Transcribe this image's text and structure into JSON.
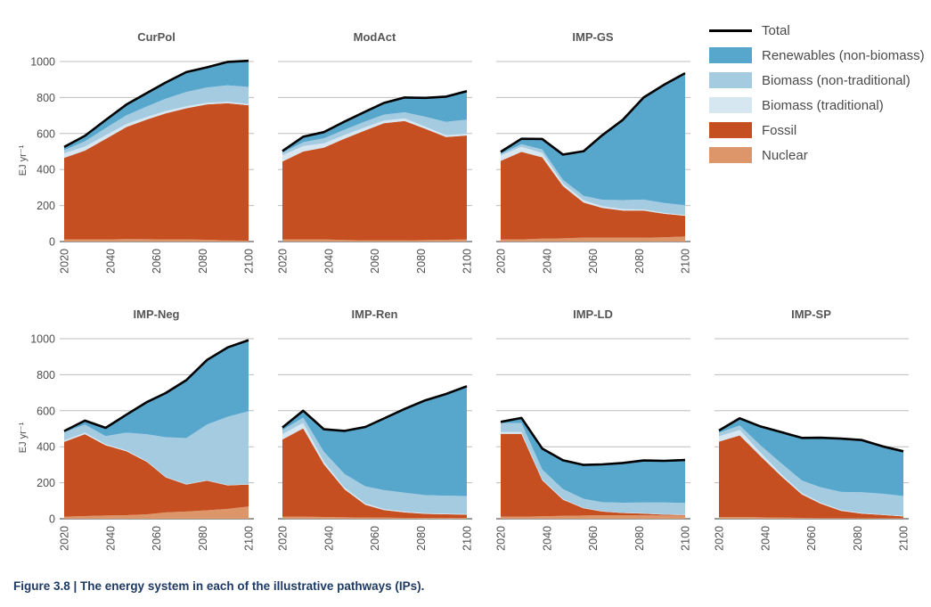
{
  "caption": "Figure 3.8 | The energy system in each of the illustrative pathways (IPs).",
  "legend": {
    "items": [
      {
        "key": "total",
        "label": "Total",
        "type": "line",
        "color": "#000000"
      },
      {
        "key": "renewables",
        "label": "Renewables (non-biomass)",
        "type": "area",
        "color": "#57a7cd"
      },
      {
        "key": "biomass_nontrad",
        "label": "Biomass (non-traditional)",
        "type": "area",
        "color": "#a5cbe1"
      },
      {
        "key": "biomass_trad",
        "label": "Biomass (traditional)",
        "type": "area",
        "color": "#d6e7f1"
      },
      {
        "key": "fossil",
        "label": "Fossil",
        "type": "area",
        "color": "#c64f21"
      },
      {
        "key": "nuclear",
        "label": "Nuclear",
        "type": "area",
        "color": "#dc966a"
      }
    ]
  },
  "chart_data": {
    "type": "area",
    "stacked": true,
    "ylabel": "EJ yr⁻¹",
    "ylim": [
      0,
      1000
    ],
    "yticks": [
      0,
      200,
      400,
      600,
      800,
      1000
    ],
    "xticks": [
      "2020",
      "2040",
      "2060",
      "2080",
      "2100"
    ],
    "xlim": [
      2020,
      2100
    ],
    "grid": true,
    "legend_position": "top-right",
    "x": [
      2020,
      2029,
      2038,
      2047,
      2056,
      2064,
      2073,
      2082,
      2091,
      2100
    ],
    "stack_order": [
      "nuclear",
      "fossil",
      "biomass_trad",
      "biomass_nontrad",
      "renewables"
    ],
    "panels": [
      {
        "title": "CurPol",
        "series": {
          "nuclear": [
            12,
            12,
            12,
            14,
            13,
            12,
            12,
            10,
            6,
            5
          ],
          "fossil": [
            453,
            493,
            558,
            622,
            665,
            700,
            728,
            752,
            762,
            752
          ],
          "biomass_trad": [
            25,
            22,
            20,
            17,
            15,
            13,
            11,
            9,
            8,
            7
          ],
          "biomass_nontrad": [
            18,
            30,
            40,
            48,
            58,
            68,
            80,
            85,
            92,
            95
          ],
          "renewables": [
            17,
            30,
            45,
            60,
            75,
            90,
            110,
            112,
            130,
            145
          ]
        },
        "total": [
          525,
          587,
          675,
          761,
          826,
          883,
          941,
          968,
          998,
          1004
        ]
      },
      {
        "title": "ModAct",
        "series": {
          "nuclear": [
            12,
            12,
            12,
            9,
            7,
            7,
            7,
            8,
            10,
            12
          ],
          "fossil": [
            432,
            488,
            510,
            563,
            611,
            650,
            663,
            618,
            570,
            577
          ],
          "biomass_trad": [
            35,
            30,
            24,
            20,
            17,
            15,
            14,
            12,
            10,
            10
          ],
          "biomass_nontrad": [
            14,
            22,
            28,
            30,
            32,
            33,
            34,
            55,
            75,
            78
          ],
          "renewables": [
            10,
            30,
            34,
            45,
            55,
            65,
            82,
            105,
            140,
            158
          ]
        },
        "total": [
          503,
          582,
          608,
          667,
          722,
          770,
          800,
          798,
          805,
          835
        ]
      },
      {
        "title": "IMP-GS",
        "series": {
          "nuclear": [
            12,
            12,
            16,
            18,
            22,
            22,
            22,
            22,
            24,
            28
          ],
          "fossil": [
            436,
            486,
            452,
            290,
            195,
            165,
            150,
            150,
            130,
            115
          ],
          "biomass_trad": [
            30,
            28,
            24,
            15,
            12,
            10,
            8,
            6,
            5,
            4
          ],
          "biomass_nontrad": [
            8,
            15,
            20,
            20,
            25,
            35,
            50,
            55,
            55,
            55
          ],
          "renewables": [
            12,
            30,
            58,
            140,
            248,
            358,
            446,
            567,
            658,
            733
          ]
        },
        "total": [
          498,
          571,
          570,
          483,
          502,
          590,
          676,
          800,
          872,
          935
        ]
      },
      {
        "title": "IMP-Neg",
        "series": {
          "nuclear": [
            12,
            15,
            18,
            20,
            25,
            35,
            40,
            47,
            55,
            68
          ],
          "fossil": [
            415,
            455,
            390,
            355,
            290,
            195,
            150,
            165,
            130,
            122
          ],
          "biomass_trad": [
            8,
            8,
            6,
            5,
            4,
            3,
            3,
            2,
            2,
            2
          ],
          "biomass_nontrad": [
            45,
            45,
            45,
            98,
            150,
            220,
            255,
            310,
            380,
            405
          ],
          "renewables": [
            7,
            22,
            46,
            100,
            180,
            245,
            322,
            358,
            385,
            395
          ]
        },
        "total": [
          487,
          545,
          505,
          578,
          649,
          698,
          770,
          882,
          952,
          992
        ]
      },
      {
        "title": "IMP-Ren",
        "series": {
          "nuclear": [
            12,
            12,
            10,
            8,
            7,
            6,
            5,
            5,
            5,
            5
          ],
          "fossil": [
            428,
            490,
            292,
            155,
            70,
            42,
            30,
            22,
            20,
            18
          ],
          "biomass_trad": [
            30,
            30,
            15,
            10,
            8,
            6,
            5,
            4,
            3,
            3
          ],
          "biomass_nontrad": [
            22,
            30,
            55,
            75,
            95,
            105,
            105,
            100,
            100,
            100
          ],
          "renewables": [
            15,
            38,
            125,
            240,
            330,
            398,
            465,
            527,
            565,
            610
          ]
        },
        "total": [
          507,
          600,
          497,
          488,
          510,
          557,
          610,
          658,
          693,
          736
        ]
      },
      {
        "title": "IMP-LD",
        "series": {
          "nuclear": [
            12,
            12,
            14,
            16,
            18,
            20,
            20,
            20,
            18,
            18
          ],
          "fossil": [
            460,
            460,
            200,
            90,
            40,
            20,
            12,
            8,
            5,
            3
          ],
          "biomass_trad": [
            10,
            10,
            5,
            4,
            3,
            2,
            2,
            2,
            2,
            2
          ],
          "biomass_nontrad": [
            50,
            50,
            55,
            55,
            50,
            50,
            55,
            60,
            65,
            65
          ],
          "renewables": [
            6,
            28,
            116,
            160,
            188,
            210,
            221,
            234,
            232,
            238
          ]
        },
        "total": [
          538,
          560,
          390,
          325,
          299,
          302,
          310,
          324,
          322,
          326
        ]
      },
      {
        "title": "IMP-SP",
        "series": {
          "nuclear": [
            10,
            10,
            8,
            6,
            5,
            4,
            4,
            3,
            3,
            3
          ],
          "fossil": [
            418,
            453,
            340,
            230,
            130,
            80,
            40,
            25,
            18,
            10
          ],
          "biomass_trad": [
            30,
            30,
            20,
            12,
            8,
            6,
            5,
            4,
            3,
            3
          ],
          "biomass_nontrad": [
            20,
            25,
            40,
            60,
            70,
            85,
            100,
            115,
            115,
            110
          ],
          "renewables": [
            12,
            40,
            105,
            173,
            236,
            275,
            296,
            290,
            263,
            249
          ]
        },
        "total": [
          490,
          558,
          513,
          481,
          449,
          450,
          445,
          437,
          402,
          375
        ]
      }
    ]
  }
}
